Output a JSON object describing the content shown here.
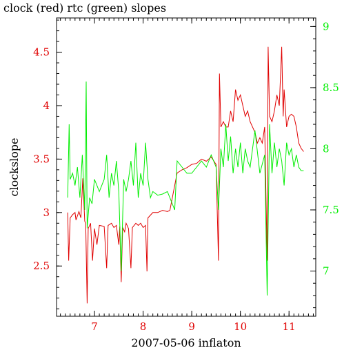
{
  "chart_data": {
    "type": "line",
    "title": "clock (red) rtc (green) slopes",
    "xlabel": "2007-05-06 inflaton",
    "ylabel": "clockslope",
    "y2label": "",
    "xlim": [
      6.22,
      11.55
    ],
    "ylim": [
      2.03,
      4.82
    ],
    "y2lim": [
      6.63,
      9.07
    ],
    "x_ticks": [
      7,
      8,
      9,
      10,
      11
    ],
    "y_ticks": [
      2.5,
      3,
      3.5,
      4,
      4.5
    ],
    "y2_ticks": [
      7,
      7.5,
      8,
      8.5,
      9
    ],
    "grid": false,
    "colors": {
      "clock": "#e00000",
      "rtc": "#00ee00",
      "axes": "#000000"
    },
    "series": [
      {
        "axis": "left",
        "color": "#e00000",
        "values": [
          [
            6.45,
            3.0
          ],
          [
            6.47,
            2.55
          ],
          [
            6.5,
            2.95
          ],
          [
            6.55,
            2.98
          ],
          [
            6.6,
            3.0
          ],
          [
            6.62,
            2.93
          ],
          [
            6.68,
            3.01
          ],
          [
            6.72,
            2.95
          ],
          [
            6.76,
            3.32
          ],
          [
            6.8,
            2.92
          ],
          [
            6.82,
            2.9
          ],
          [
            6.85,
            2.15
          ],
          [
            6.87,
            2.85
          ],
          [
            6.92,
            2.9
          ],
          [
            6.96,
            2.55
          ],
          [
            7.0,
            2.85
          ],
          [
            7.05,
            2.7
          ],
          [
            7.1,
            2.88
          ],
          [
            7.2,
            2.87
          ],
          [
            7.25,
            2.48
          ],
          [
            7.28,
            2.88
          ],
          [
            7.35,
            2.9
          ],
          [
            7.4,
            2.86
          ],
          [
            7.45,
            2.88
          ],
          [
            7.5,
            2.7
          ],
          [
            7.52,
            2.87
          ],
          [
            7.55,
            2.35
          ],
          [
            7.58,
            2.86
          ],
          [
            7.62,
            2.82
          ],
          [
            7.65,
            2.9
          ],
          [
            7.7,
            2.85
          ],
          [
            7.75,
            2.48
          ],
          [
            7.78,
            2.86
          ],
          [
            7.85,
            2.9
          ],
          [
            7.9,
            2.88
          ],
          [
            7.95,
            2.9
          ],
          [
            8.0,
            2.86
          ],
          [
            8.05,
            2.88
          ],
          [
            8.08,
            2.45
          ],
          [
            8.1,
            2.95
          ],
          [
            8.2,
            3.0
          ],
          [
            8.3,
            3.0
          ],
          [
            8.4,
            3.02
          ],
          [
            8.5,
            3.01
          ],
          [
            8.55,
            3.02
          ],
          [
            8.7,
            3.37
          ],
          [
            8.8,
            3.4
          ],
          [
            8.9,
            3.42
          ],
          [
            9.0,
            3.45
          ],
          [
            9.1,
            3.46
          ],
          [
            9.2,
            3.5
          ],
          [
            9.3,
            3.48
          ],
          [
            9.4,
            3.52
          ],
          [
            9.5,
            3.45
          ],
          [
            9.55,
            2.55
          ],
          [
            9.57,
            4.3
          ],
          [
            9.6,
            3.8
          ],
          [
            9.65,
            3.85
          ],
          [
            9.7,
            3.8
          ],
          [
            9.75,
            3.8
          ],
          [
            9.8,
            3.95
          ],
          [
            9.85,
            3.85
          ],
          [
            9.9,
            4.15
          ],
          [
            9.95,
            4.05
          ],
          [
            10.0,
            4.1
          ],
          [
            10.05,
            4.0
          ],
          [
            10.1,
            3.9
          ],
          [
            10.15,
            3.95
          ],
          [
            10.2,
            3.85
          ],
          [
            10.25,
            3.8
          ],
          [
            10.3,
            3.75
          ],
          [
            10.35,
            3.65
          ],
          [
            10.4,
            3.7
          ],
          [
            10.45,
            3.65
          ],
          [
            10.5,
            3.8
          ],
          [
            10.55,
            2.55
          ],
          [
            10.57,
            4.55
          ],
          [
            10.6,
            3.9
          ],
          [
            10.65,
            3.85
          ],
          [
            10.7,
            3.95
          ],
          [
            10.75,
            4.1
          ],
          [
            10.8,
            4.0
          ],
          [
            10.85,
            4.55
          ],
          [
            10.88,
            3.9
          ],
          [
            10.9,
            4.15
          ],
          [
            10.95,
            3.8
          ],
          [
            11.0,
            3.9
          ],
          [
            11.05,
            3.92
          ],
          [
            11.1,
            3.9
          ],
          [
            11.15,
            3.8
          ],
          [
            11.2,
            3.65
          ],
          [
            11.25,
            3.6
          ],
          [
            11.3,
            3.57
          ]
        ]
      },
      {
        "axis": "right",
        "color": "#00ee00",
        "values": [
          [
            6.45,
            7.6
          ],
          [
            6.48,
            8.2
          ],
          [
            6.5,
            7.75
          ],
          [
            6.55,
            7.8
          ],
          [
            6.6,
            7.7
          ],
          [
            6.65,
            7.85
          ],
          [
            6.7,
            7.6
          ],
          [
            6.75,
            7.95
          ],
          [
            6.8,
            7.5
          ],
          [
            6.83,
            8.55
          ],
          [
            6.85,
            7.35
          ],
          [
            6.9,
            7.6
          ],
          [
            6.95,
            7.55
          ],
          [
            7.0,
            7.75
          ],
          [
            7.05,
            7.7
          ],
          [
            7.1,
            7.65
          ],
          [
            7.15,
            7.7
          ],
          [
            7.2,
            7.75
          ],
          [
            7.25,
            7.95
          ],
          [
            7.3,
            7.6
          ],
          [
            7.35,
            7.8
          ],
          [
            7.4,
            7.7
          ],
          [
            7.45,
            7.9
          ],
          [
            7.5,
            7.65
          ],
          [
            7.55,
            7.0
          ],
          [
            7.6,
            7.75
          ],
          [
            7.65,
            7.65
          ],
          [
            7.7,
            7.75
          ],
          [
            7.75,
            7.9
          ],
          [
            7.8,
            7.7
          ],
          [
            7.85,
            8.05
          ],
          [
            7.9,
            7.6
          ],
          [
            7.95,
            7.8
          ],
          [
            8.0,
            7.7
          ],
          [
            8.05,
            8.05
          ],
          [
            8.1,
            7.75
          ],
          [
            8.15,
            7.6
          ],
          [
            8.2,
            7.65
          ],
          [
            8.3,
            7.62
          ],
          [
            8.4,
            7.63
          ],
          [
            8.5,
            7.65
          ],
          [
            8.55,
            7.6
          ],
          [
            8.65,
            7.5
          ],
          [
            8.7,
            7.9
          ],
          [
            8.8,
            7.85
          ],
          [
            8.9,
            7.8
          ],
          [
            9.0,
            7.8
          ],
          [
            9.1,
            7.85
          ],
          [
            9.2,
            7.9
          ],
          [
            9.3,
            7.85
          ],
          [
            9.4,
            7.95
          ],
          [
            9.5,
            7.85
          ],
          [
            9.55,
            7.5
          ],
          [
            9.6,
            8.0
          ],
          [
            9.65,
            7.85
          ],
          [
            9.7,
            8.2
          ],
          [
            9.75,
            7.9
          ],
          [
            9.8,
            8.1
          ],
          [
            9.85,
            7.8
          ],
          [
            9.9,
            8.0
          ],
          [
            9.95,
            7.85
          ],
          [
            10.0,
            8.05
          ],
          [
            10.05,
            7.8
          ],
          [
            10.1,
            8.0
          ],
          [
            10.15,
            7.9
          ],
          [
            10.2,
            7.85
          ],
          [
            10.3,
            8.15
          ],
          [
            10.4,
            7.8
          ],
          [
            10.5,
            7.95
          ],
          [
            10.55,
            6.8
          ],
          [
            10.6,
            8.2
          ],
          [
            10.65,
            7.8
          ],
          [
            10.7,
            8.05
          ],
          [
            10.75,
            7.85
          ],
          [
            10.8,
            8.0
          ],
          [
            10.85,
            7.9
          ],
          [
            10.9,
            7.7
          ],
          [
            10.95,
            8.05
          ],
          [
            11.0,
            7.95
          ],
          [
            11.05,
            8.0
          ],
          [
            11.1,
            7.85
          ],
          [
            11.15,
            7.95
          ],
          [
            11.2,
            7.85
          ],
          [
            11.25,
            7.82
          ],
          [
            11.3,
            7.82
          ]
        ]
      }
    ]
  }
}
